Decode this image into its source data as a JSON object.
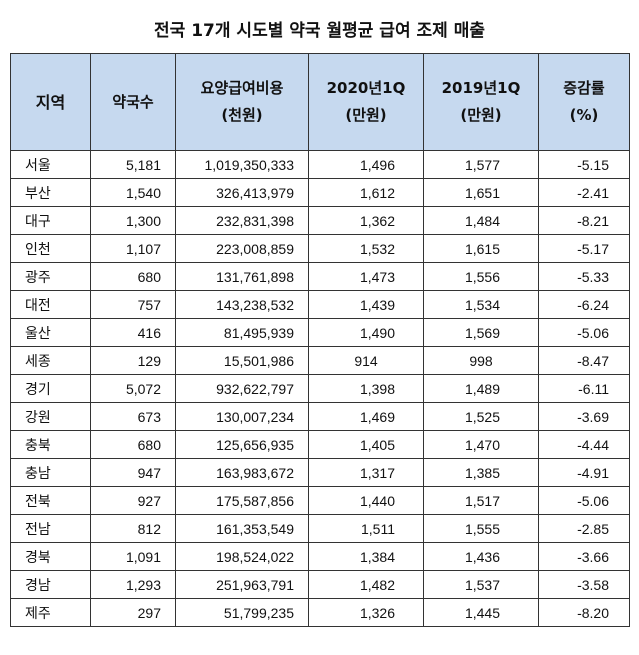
{
  "title": "전국 17개 시도별 약국 월평균 급여 조제 매출",
  "headers": {
    "region": "지역",
    "pharmacies": "약국수",
    "cost_line1": "요양급여비용",
    "cost_line2": "(천원)",
    "q2020_line1": "2020년1Q",
    "q2020_line2": "(만원)",
    "q2019_line1": "2019년1Q",
    "q2019_line2": "(만원)",
    "rate_line1": "증감률",
    "rate_line2": "(%)"
  },
  "rows": [
    {
      "region": "서울",
      "pharmacies": "5,181",
      "cost": "1,019,350,333",
      "q2020": "1,496",
      "q2019": "1,577",
      "rate": "-5.15"
    },
    {
      "region": "부산",
      "pharmacies": "1,540",
      "cost": "326,413,979",
      "q2020": "1,612",
      "q2019": "1,651",
      "rate": "-2.41"
    },
    {
      "region": "대구",
      "pharmacies": "1,300",
      "cost": "232,831,398",
      "q2020": "1,362",
      "q2019": "1,484",
      "rate": "-8.21"
    },
    {
      "region": "인천",
      "pharmacies": "1,107",
      "cost": "223,008,859",
      "q2020": "1,532",
      "q2019": "1,615",
      "rate": "-5.17"
    },
    {
      "region": "광주",
      "pharmacies": "680",
      "cost": "131,761,898",
      "q2020": "1,473",
      "q2019": "1,556",
      "rate": "-5.33"
    },
    {
      "region": "대전",
      "pharmacies": "757",
      "cost": "143,238,532",
      "q2020": "1,439",
      "q2019": "1,534",
      "rate": "-6.24"
    },
    {
      "region": "울산",
      "pharmacies": "416",
      "cost": "81,495,939",
      "q2020": "1,490",
      "q2019": "1,569",
      "rate": "-5.06"
    },
    {
      "region": "세종",
      "pharmacies": "129",
      "cost": "15,501,986",
      "q2020": "914",
      "q2019": "998",
      "rate": "-8.47"
    },
    {
      "region": "경기",
      "pharmacies": "5,072",
      "cost": "932,622,797",
      "q2020": "1,398",
      "q2019": "1,489",
      "rate": "-6.11"
    },
    {
      "region": "강원",
      "pharmacies": "673",
      "cost": "130,007,234",
      "q2020": "1,469",
      "q2019": "1,525",
      "rate": "-3.69"
    },
    {
      "region": "충북",
      "pharmacies": "680",
      "cost": "125,656,935",
      "q2020": "1,405",
      "q2019": "1,470",
      "rate": "-4.44"
    },
    {
      "region": "충남",
      "pharmacies": "947",
      "cost": "163,983,672",
      "q2020": "1,317",
      "q2019": "1,385",
      "rate": "-4.91"
    },
    {
      "region": "전북",
      "pharmacies": "927",
      "cost": "175,587,856",
      "q2020": "1,440",
      "q2019": "1,517",
      "rate": "-5.06"
    },
    {
      "region": "전남",
      "pharmacies": "812",
      "cost": "161,353,549",
      "q2020": "1,511",
      "q2019": "1,555",
      "rate": "-2.85"
    },
    {
      "region": "경북",
      "pharmacies": "1,091",
      "cost": "198,524,022",
      "q2020": "1,384",
      "q2019": "1,436",
      "rate": "-3.66"
    },
    {
      "region": "경남",
      "pharmacies": "1,293",
      "cost": "251,963,791",
      "q2020": "1,482",
      "q2019": "1,537",
      "rate": "-3.58"
    },
    {
      "region": "제주",
      "pharmacies": "297",
      "cost": "51,799,235",
      "q2020": "1,326",
      "q2019": "1,445",
      "rate": "-8.20"
    }
  ],
  "colors": {
    "header_bg": "#c6d9ef",
    "border": "#333333"
  }
}
